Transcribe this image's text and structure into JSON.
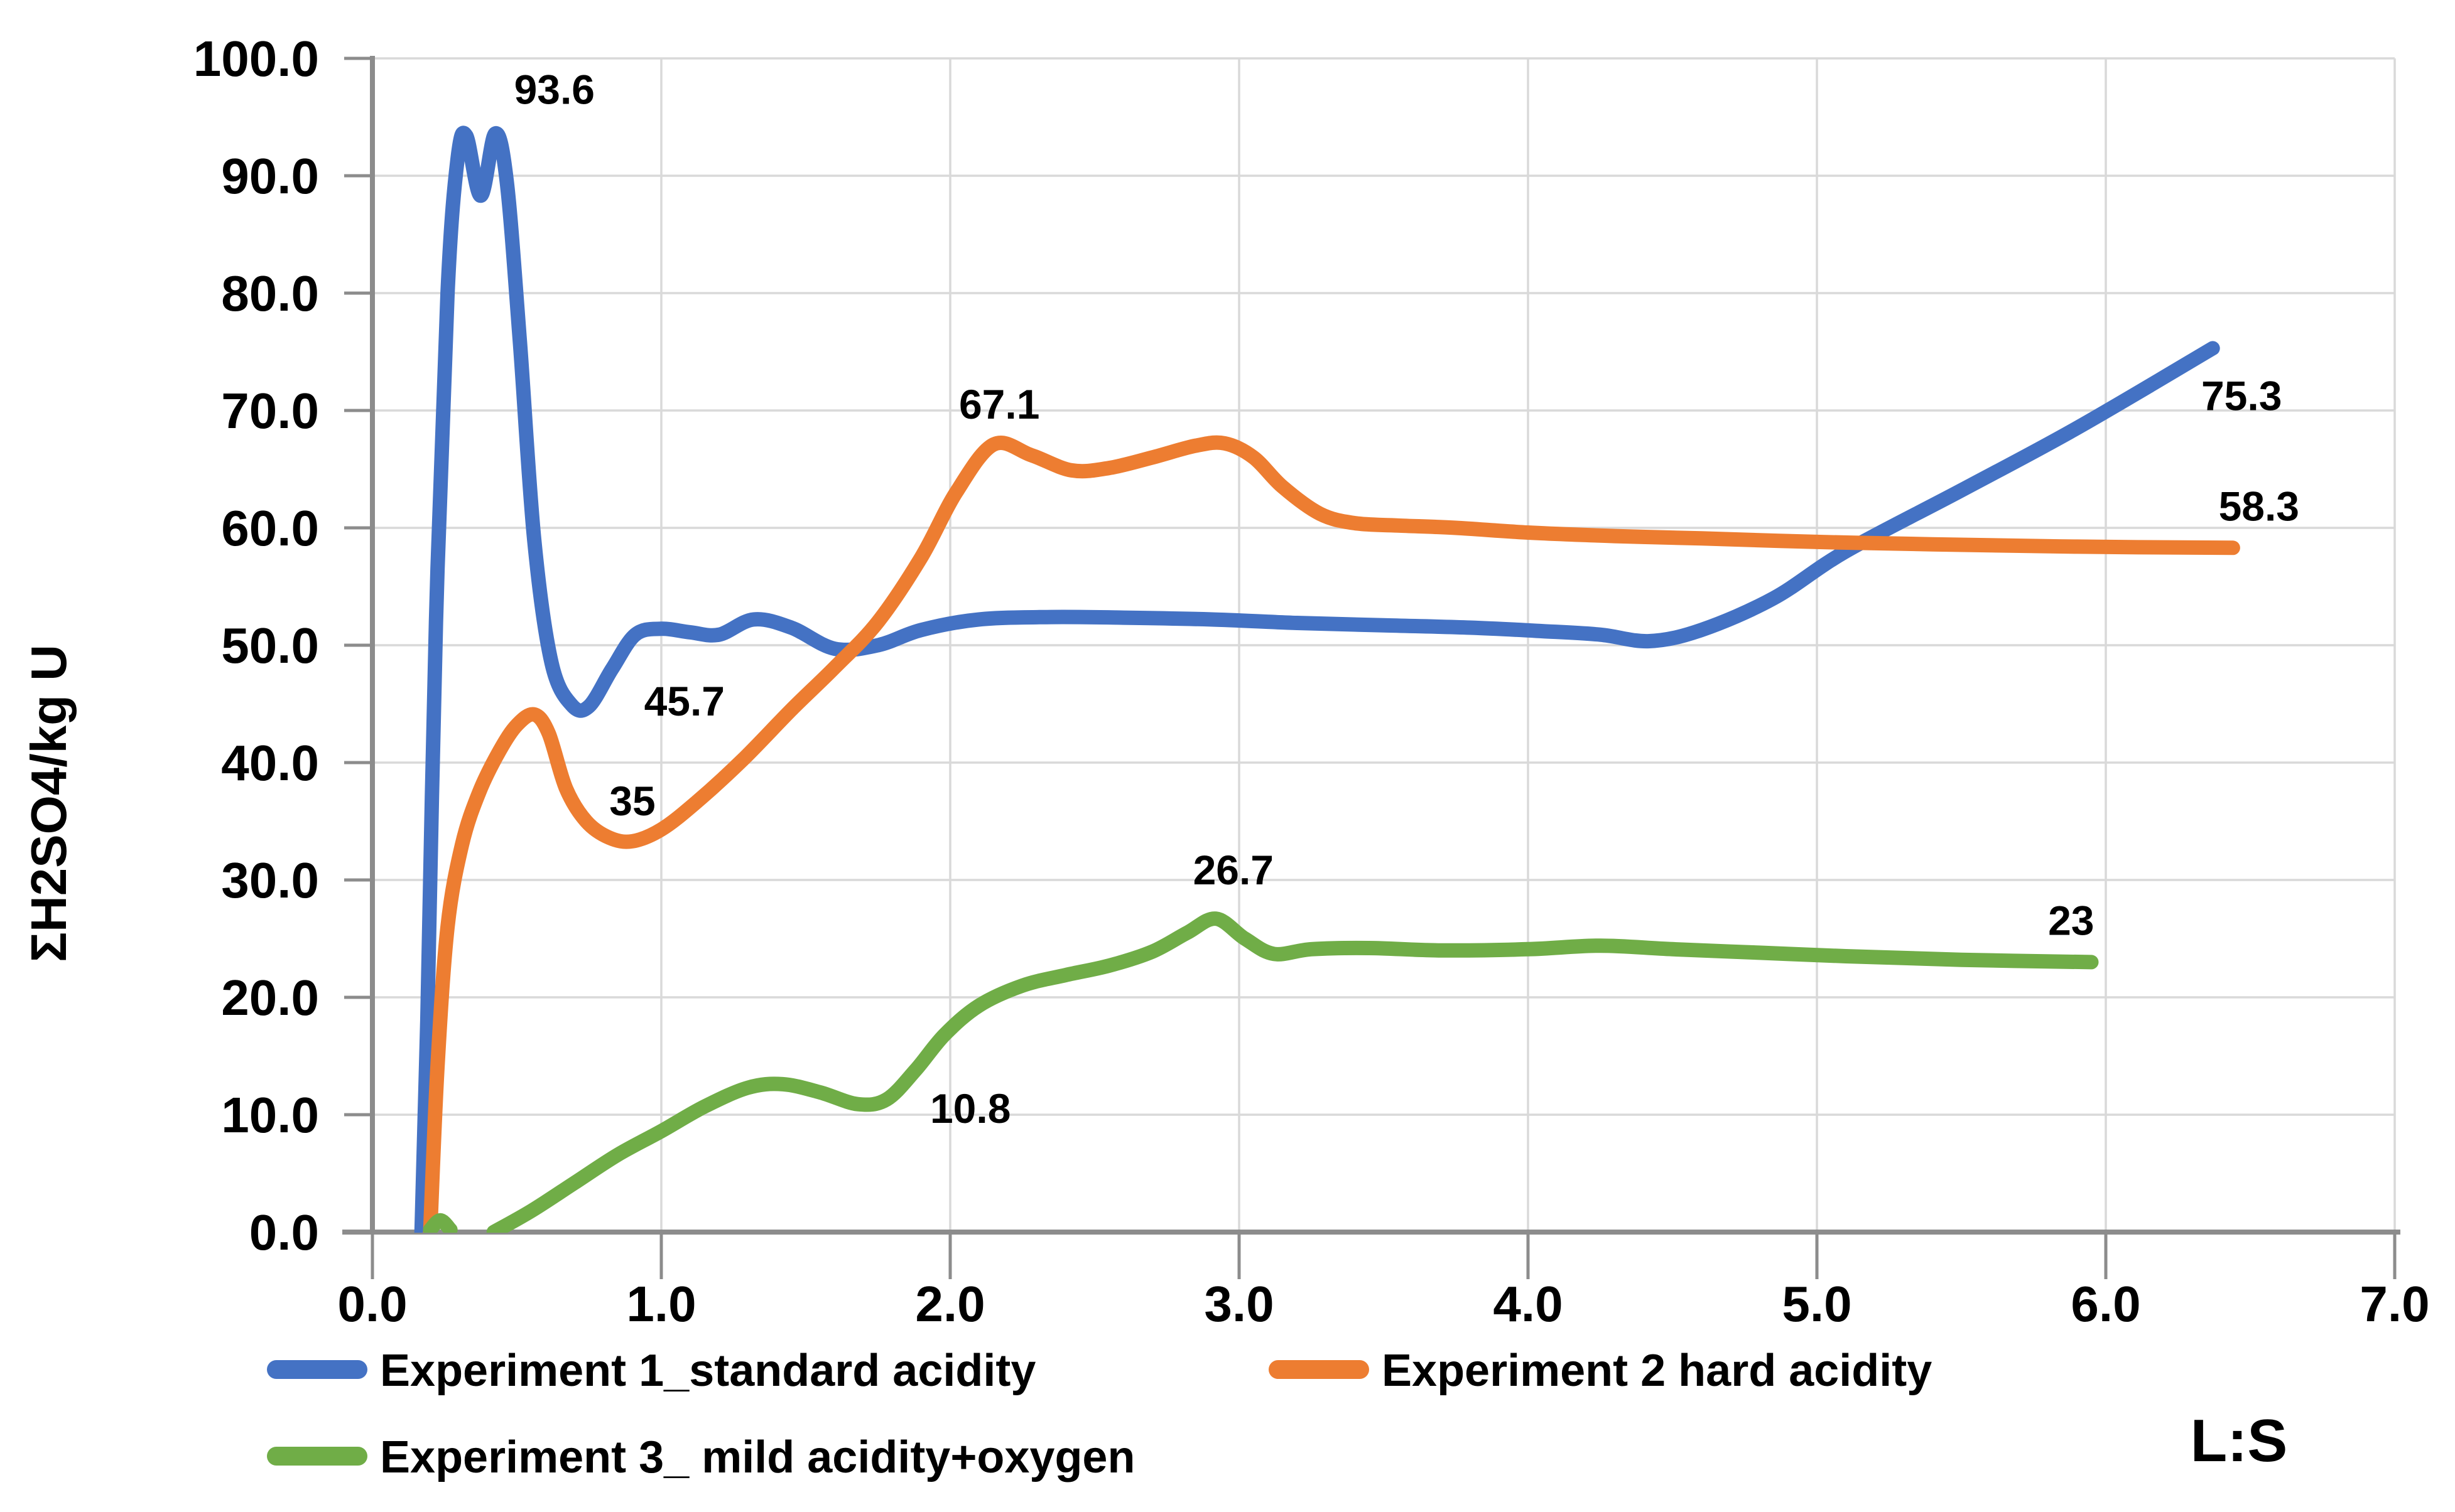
{
  "chart_data": {
    "type": "line",
    "title": "",
    "grid": true,
    "legend_position": "bottom-left",
    "x_axis": {
      "label": "L:S",
      "min": 0,
      "max": 7,
      "ticks": [
        "0.0",
        "1.0",
        "2.0",
        "3.0",
        "4.0",
        "5.0",
        "6.0",
        "7.0"
      ],
      "tick_values": [
        0,
        1,
        2,
        3,
        4,
        5,
        6,
        7
      ]
    },
    "y_axis": {
      "label": "ΣH2SO4/kg U",
      "min": 0,
      "max": 100,
      "ticks": [
        "0.0",
        "10.0",
        "20.0",
        "30.0",
        "40.0",
        "50.0",
        "60.0",
        "70.0",
        "80.0",
        "90.0",
        "100.0"
      ],
      "tick_values": [
        0,
        10,
        20,
        30,
        40,
        50,
        60,
        70,
        80,
        90,
        100
      ]
    },
    "colors": {
      "series1": "#4472C4",
      "series2": "#ED7D31",
      "series3": "#70AD47",
      "gridline": "#D9D9D9",
      "axis": "#8C8C8C",
      "label_text": "#000000"
    },
    "series": [
      {
        "name": "Experiment 1_standard acidity",
        "color": "#4472C4",
        "segments": [
          [
            [
              0.17,
              0
            ],
            [
              0.19,
              18
            ],
            [
              0.22,
              52
            ],
            [
              0.26,
              80
            ],
            [
              0.295,
              91.5
            ],
            [
              0.325,
              93.4
            ],
            [
              0.375,
              88.3
            ],
            [
              0.425,
              93.6
            ],
            [
              0.465,
              89.5
            ],
            [
              0.51,
              76
            ],
            [
              0.56,
              59
            ],
            [
              0.62,
              48.5
            ],
            [
              0.69,
              44.9
            ],
            [
              0.75,
              44.8
            ],
            [
              0.83,
              48
            ],
            [
              0.91,
              50.9
            ],
            [
              1.0,
              51.4
            ],
            [
              1.1,
              51.1
            ],
            [
              1.2,
              50.9
            ],
            [
              1.32,
              52.2
            ],
            [
              1.45,
              51.5
            ],
            [
              1.6,
              49.7
            ],
            [
              1.75,
              50.0
            ],
            [
              1.9,
              51.3
            ],
            [
              2.1,
              52.2
            ],
            [
              2.35,
              52.4
            ],
            [
              2.6,
              52.35
            ],
            [
              2.9,
              52.2
            ],
            [
              3.2,
              51.9
            ],
            [
              3.5,
              51.7
            ],
            [
              3.8,
              51.5
            ],
            [
              4.05,
              51.2
            ],
            [
              4.25,
              50.9
            ],
            [
              4.42,
              50.35
            ],
            [
              4.6,
              51.3
            ],
            [
              4.85,
              54.0
            ],
            [
              5.1,
              58.0
            ],
            [
              5.5,
              63.2
            ],
            [
              5.9,
              68.5
            ],
            [
              6.37,
              75.3
            ]
          ]
        ]
      },
      {
        "name": "Experiment 2 hard acidity",
        "color": "#ED7D31",
        "segments": [
          [
            [
              0.2,
              0
            ],
            [
              0.225,
              14
            ],
            [
              0.26,
              26
            ],
            [
              0.31,
              33
            ],
            [
              0.37,
              37.5
            ],
            [
              0.44,
              41
            ],
            [
              0.5,
              43.2
            ],
            [
              0.56,
              44.1
            ],
            [
              0.61,
              42.5
            ],
            [
              0.67,
              37.8
            ],
            [
              0.74,
              35.0
            ],
            [
              0.82,
              33.6
            ],
            [
              0.9,
              33.3
            ],
            [
              1.0,
              34.3
            ],
            [
              1.12,
              36.6
            ],
            [
              1.28,
              40.2
            ],
            [
              1.45,
              44.5
            ],
            [
              1.6,
              48.1
            ],
            [
              1.75,
              52.0
            ],
            [
              1.9,
              57.5
            ],
            [
              2.02,
              63.0
            ],
            [
              2.15,
              67.1
            ],
            [
              2.28,
              66.2
            ],
            [
              2.42,
              64.9
            ],
            [
              2.55,
              65.1
            ],
            [
              2.7,
              66.0
            ],
            [
              2.85,
              67.0
            ],
            [
              2.95,
              67.2
            ],
            [
              3.05,
              66.0
            ],
            [
              3.15,
              63.5
            ],
            [
              3.28,
              61.2
            ],
            [
              3.4,
              60.4
            ],
            [
              3.55,
              60.2
            ],
            [
              3.75,
              60.0
            ],
            [
              4.0,
              59.6
            ],
            [
              4.3,
              59.3
            ],
            [
              4.6,
              59.1
            ],
            [
              5.0,
              58.8
            ],
            [
              5.4,
              58.6
            ],
            [
              5.9,
              58.4
            ],
            [
              6.44,
              58.3
            ]
          ]
        ]
      },
      {
        "name": "Experiment 3_ mild acidity+oxygen",
        "color": "#70AD47",
        "segments": [
          [
            [
              0.2,
              0.2
            ],
            [
              0.235,
              1.0
            ],
            [
              0.27,
              0.2
            ]
          ],
          [
            [
              0.42,
              0
            ],
            [
              0.55,
              1.8
            ],
            [
              0.7,
              4.2
            ],
            [
              0.85,
              6.6
            ],
            [
              1.0,
              8.6
            ],
            [
              1.15,
              10.7
            ],
            [
              1.3,
              12.3
            ],
            [
              1.42,
              12.6
            ],
            [
              1.55,
              11.9
            ],
            [
              1.68,
              10.9
            ],
            [
              1.78,
              11.3
            ],
            [
              1.88,
              13.8
            ],
            [
              1.98,
              16.8
            ],
            [
              2.1,
              19.3
            ],
            [
              2.25,
              21.0
            ],
            [
              2.4,
              21.9
            ],
            [
              2.55,
              22.7
            ],
            [
              2.7,
              23.9
            ],
            [
              2.82,
              25.5
            ],
            [
              2.92,
              26.7
            ],
            [
              3.02,
              25.0
            ],
            [
              3.12,
              23.7
            ],
            [
              3.25,
              24.1
            ],
            [
              3.45,
              24.2
            ],
            [
              3.7,
              24.0
            ],
            [
              4.0,
              24.1
            ],
            [
              4.25,
              24.4
            ],
            [
              4.5,
              24.1
            ],
            [
              4.8,
              23.8
            ],
            [
              5.1,
              23.5
            ],
            [
              5.5,
              23.2
            ],
            [
              5.95,
              23.0
            ]
          ]
        ]
      }
    ],
    "annotations": [
      {
        "text": "93.6",
        "x": 0.63,
        "y": 97.4
      },
      {
        "text": "45.7",
        "x": 1.08,
        "y": 45.3
      },
      {
        "text": "35",
        "x": 0.9,
        "y": 36.8
      },
      {
        "text": "67.1",
        "x": 2.17,
        "y": 70.6
      },
      {
        "text": "26.7",
        "x": 2.98,
        "y": 30.9
      },
      {
        "text": "10.8",
        "x": 2.07,
        "y": 10.6
      },
      {
        "text": "75.3",
        "x": 6.47,
        "y": 71.3
      },
      {
        "text": "58.3",
        "x": 6.53,
        "y": 61.9
      },
      {
        "text": "23",
        "x": 5.88,
        "y": 26.6
      }
    ]
  }
}
